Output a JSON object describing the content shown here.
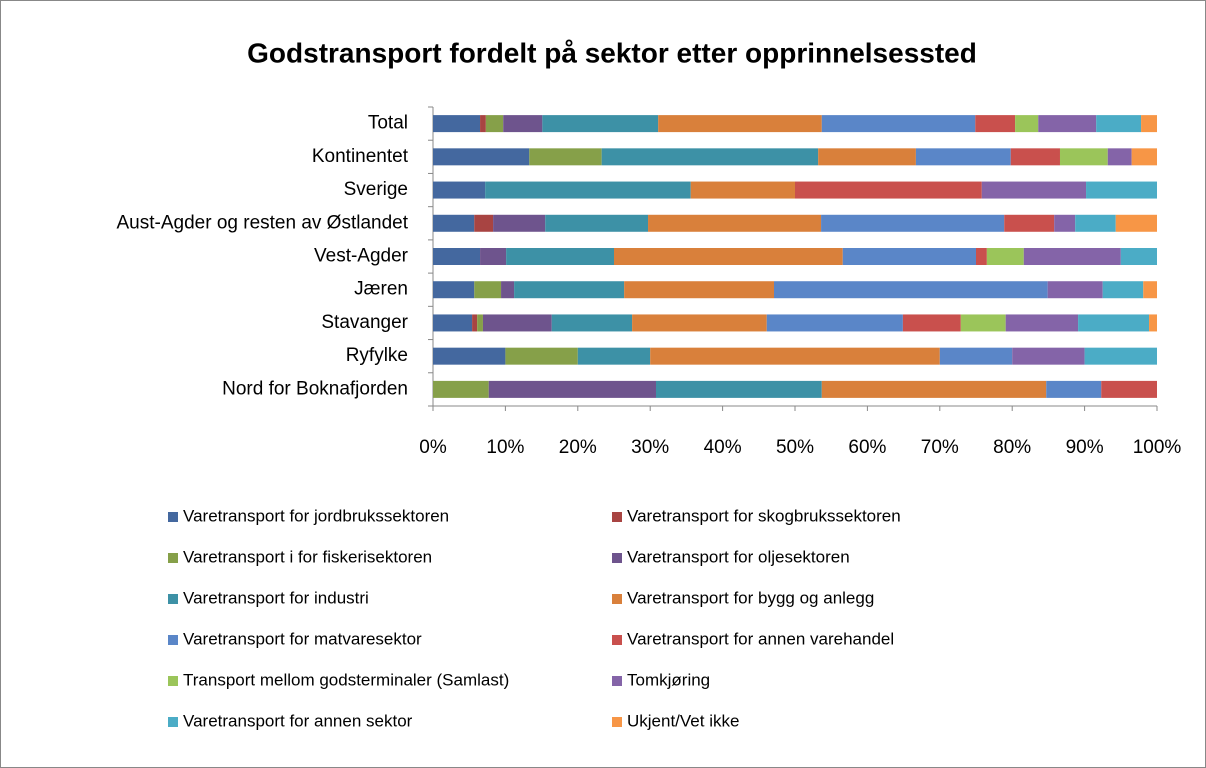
{
  "chart_data": {
    "type": "stacked_bar_horizontal",
    "title": "Godstransport fordelt på sektor etter opprinnelsessted",
    "categories": [
      "Total",
      "Kontinentet",
      "Sverige",
      "Aust-Agder og resten av Østlandet",
      "Vest-Agder",
      "Jæren",
      "Stavanger",
      "Ryfylke",
      "Nord for Boknafjorden"
    ],
    "series": [
      {
        "name": "Varetransport for jordbrukssektoren",
        "color": "#44689f",
        "values": [
          6.5,
          13.3,
          7.2,
          5.7,
          6.5,
          5.7,
          5.4,
          10,
          0
        ]
      },
      {
        "name": "Varetransport for skogbrukssektoren",
        "color": "#a84442",
        "values": [
          0.8,
          0,
          0,
          2.6,
          0,
          0,
          0.7,
          0,
          0
        ]
      },
      {
        "name": "Varetransport i for fiskerisektoren",
        "color": "#86a049",
        "values": [
          2.4,
          10.0,
          0,
          0,
          0,
          3.7,
          0.8,
          10,
          7.7
        ]
      },
      {
        "name": "Varetransport for oljesektoren",
        "color": "#6e548d",
        "values": [
          5.4,
          0,
          0,
          7.2,
          3.6,
          1.8,
          9.5,
          0,
          23.1
        ]
      },
      {
        "name": "Varetransport for industri",
        "color": "#3d91a6",
        "values": [
          16.0,
          29.9,
          28.4,
          14.2,
          14.9,
          15.2,
          11.1,
          10,
          22.9
        ]
      },
      {
        "name": "Varetransport for bygg og anlegg",
        "color": "#d9803b",
        "values": [
          22.6,
          13.5,
          14.4,
          23.9,
          31.6,
          20.7,
          18.6,
          40,
          31.0
        ]
      },
      {
        "name": "Varetransport for matvaresektor",
        "color": "#5a86c8",
        "values": [
          21.2,
          13.1,
          0,
          25.3,
          18.4,
          37.8,
          18.8,
          10,
          7.6
        ]
      },
      {
        "name": "Varetransport for annen varehandel",
        "color": "#c9504d",
        "values": [
          5.5,
          6.8,
          25.8,
          6.9,
          1.5,
          0,
          8.0,
          0,
          7.7
        ]
      },
      {
        "name": "Transport mellom godsterminaler (Samlast)",
        "color": "#9bc55a",
        "values": [
          3.2,
          6.6,
          0,
          0,
          5.1,
          0,
          6.2,
          0,
          0
        ]
      },
      {
        "name": "Tomkjøring",
        "color": "#8464a8",
        "values": [
          8.0,
          3.3,
          14.4,
          2.9,
          13.4,
          7.6,
          10.0,
          10,
          0
        ]
      },
      {
        "name": "Varetransport for annen sektor",
        "color": "#4bacc6",
        "values": [
          6.2,
          0,
          9.8,
          5.6,
          5.0,
          5.6,
          9.8,
          10,
          0
        ]
      },
      {
        "name": "Ukjent/Vet ikke",
        "color": "#f79646",
        "values": [
          2.2,
          3.5,
          0,
          5.7,
          0,
          1.9,
          1.1,
          0,
          0
        ]
      }
    ],
    "xlim": [
      0,
      100
    ],
    "xticks": [
      {
        "value": 0,
        "label": "0%"
      },
      {
        "value": 10,
        "label": "10%"
      },
      {
        "value": 20,
        "label": "20%"
      },
      {
        "value": 30,
        "label": "30%"
      },
      {
        "value": 40,
        "label": "40%"
      },
      {
        "value": 50,
        "label": "50%"
      },
      {
        "value": 60,
        "label": "60%"
      },
      {
        "value": 70,
        "label": "70%"
      },
      {
        "value": 80,
        "label": "80%"
      },
      {
        "value": 90,
        "label": "90%"
      },
      {
        "value": 100,
        "label": "100%"
      }
    ]
  }
}
